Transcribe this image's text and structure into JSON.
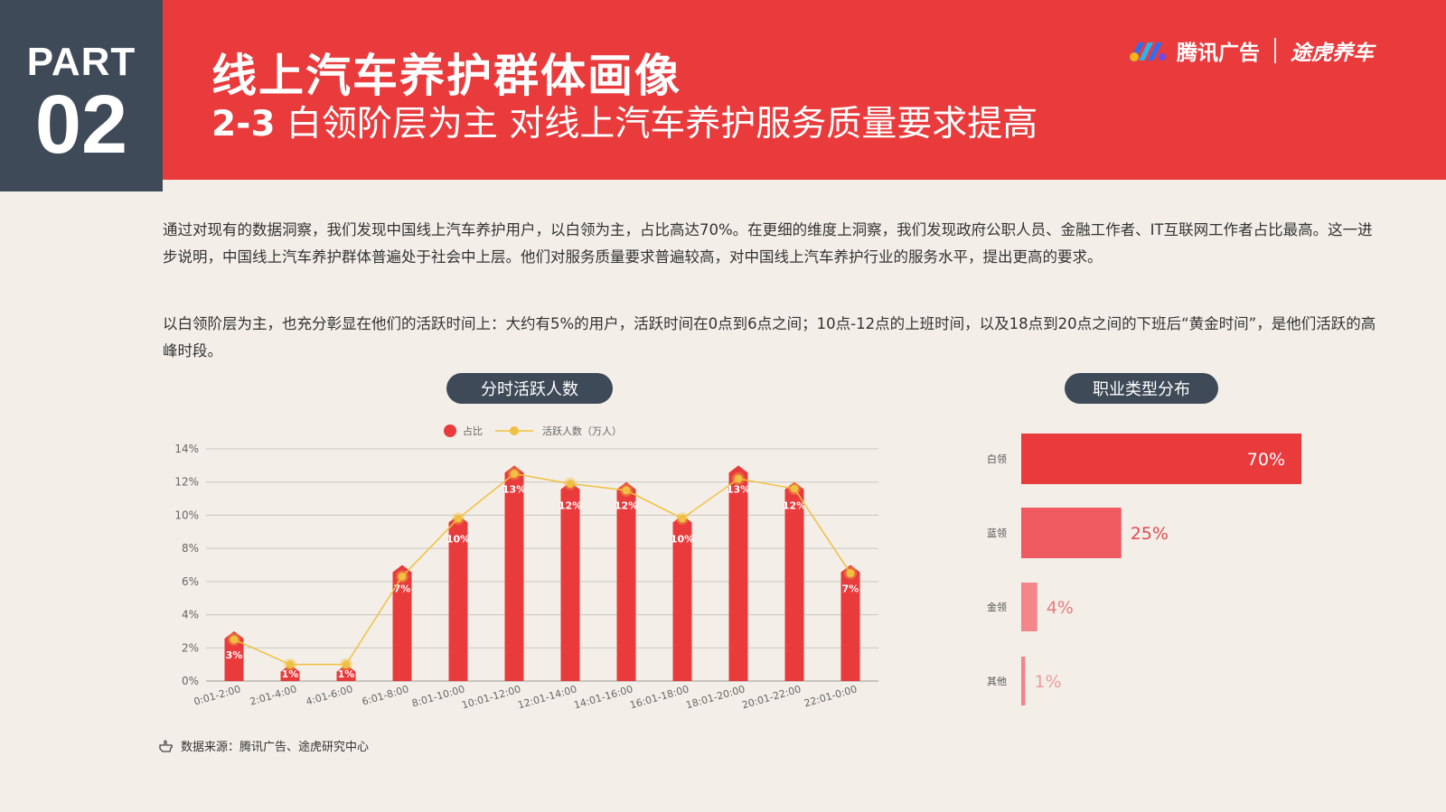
{
  "header": {
    "part_label": "PART",
    "part_number": "02",
    "title": "线上汽车养护群体画像",
    "subtitle_num": "2-3",
    "subtitle_text": " 白领阶层为主 对线上汽车养护服务质量要求提高",
    "brand_a": "腾讯广告",
    "brand_b": "途虎养车",
    "logo_icon": "tencent-ads-logo-icon"
  },
  "intro": {
    "p1": "通过对现有的数据洞察，我们发现中国线上汽车养护用户，以白领为主，占比高达70%。在更细的维度上洞察，我们发现政府公职人员、金融工作者、IT互联网工作者占比最高。这一进步说明，中国线上汽车养护群体普遍处于社会中上层。他们对服务质量要求普遍较高，对中国线上汽车养护行业的服务水平，提出更高的要求。",
    "p2": "以白领阶层为主，也充分彰显在他们的活跃时间上：大约有5%的用户，活跃时间在0点到6点之间；10点-12点的上班时间，以及18点到20点之间的下班后“黄金时间”，是他们活跃的高峰时段。"
  },
  "colors": {
    "bar": "#e93a3c",
    "line": "#f0c040",
    "dark": "#3f4a58",
    "bar_light": "#ef5a60",
    "bar_lighter": "#f2868a"
  },
  "chart_data": [
    {
      "type": "bar",
      "title": "分时活跃人数",
      "categories": [
        "0:01-2:00",
        "2:01-4:00",
        "4:01-6:00",
        "6:01-8:00",
        "8:01-10:00",
        "10:01-12:00",
        "12:01-14:00",
        "14:01-16:00",
        "16:01-18:00",
        "18:01-20:00",
        "20:01-22:00",
        "22:01-0:00"
      ],
      "series": [
        {
          "name": "占比",
          "type": "bar",
          "values": [
            3,
            1,
            1,
            7,
            10,
            13,
            12,
            12,
            10,
            13,
            12,
            7
          ],
          "labels": [
            "3%",
            "1%",
            "1%",
            "7%",
            "10%",
            "13%",
            "12%",
            "12%",
            "10%",
            "13%",
            "12%",
            "7%"
          ]
        },
        {
          "name": "活跃人数（万人）",
          "type": "line",
          "values": [
            2.5,
            1,
            1,
            6.3,
            9.8,
            12.5,
            11.9,
            11.5,
            9.8,
            12.2,
            11.6,
            6.5
          ]
        }
      ],
      "yticks": [
        "0%",
        "2%",
        "4%",
        "6%",
        "8%",
        "10%",
        "12%",
        "14%"
      ],
      "ylim": [
        0,
        14
      ],
      "legend_position": "top"
    },
    {
      "type": "bar",
      "orientation": "horizontal",
      "title": "职业类型分布",
      "categories": [
        "白领",
        "蓝领",
        "金领",
        "其他"
      ],
      "values": [
        70,
        25,
        4,
        1
      ],
      "labels": [
        "70%",
        "25%",
        "4%",
        "1%"
      ],
      "xlim": [
        0,
        100
      ]
    }
  ],
  "source": "数据来源：腾讯广告、途虎研究中心"
}
